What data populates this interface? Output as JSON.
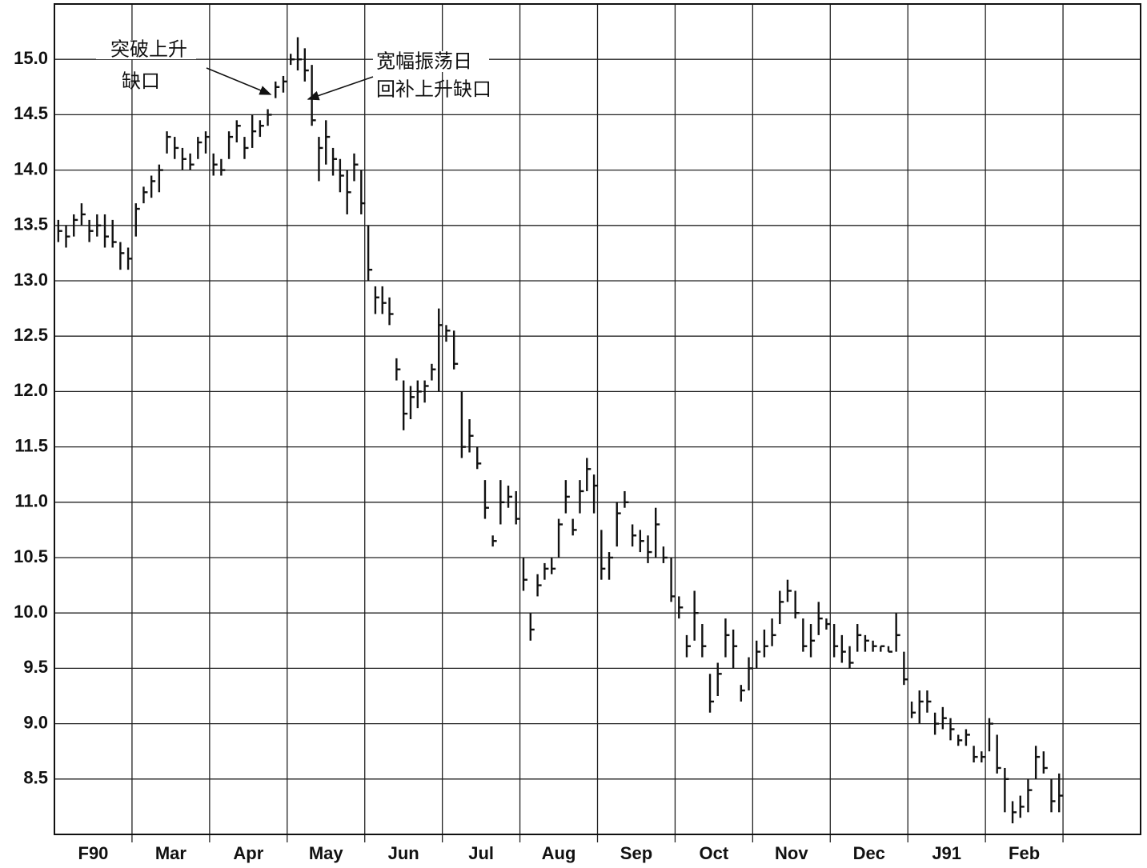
{
  "chart_data": {
    "type": "hlc",
    "annotations": [
      {
        "lines": [
          "突破上升",
          "缺口"
        ]
      },
      {
        "lines": [
          "宽幅振荡日",
          "回补上升缺口"
        ]
      }
    ],
    "categories": [
      "F90",
      "Mar",
      "Apr",
      "May",
      "Jun",
      "Jul",
      "Aug",
      "Sep",
      "Oct",
      "Nov",
      "Dec",
      "J91",
      "Feb",
      null
    ],
    "color": "#111111",
    "grid": true,
    "ylim": [
      8.0,
      15.5
    ],
    "yticks": [
      8.5,
      {
        "value": 9,
        "label": "9.0"
      },
      9.5,
      {
        "value": 10,
        "label": "10.0"
      },
      10.5,
      {
        "value": 11,
        "label": "11.0"
      },
      11.5,
      {
        "value": 12,
        "label": "12.0"
      },
      12.5,
      {
        "value": 13,
        "label": "13.0"
      },
      13.5,
      {
        "value": 14,
        "label": "14.0"
      },
      14.5,
      {
        "value": 15,
        "label": "15.0"
      }
    ],
    "bars": [
      [
        [
          13.55,
          13.35,
          13.45
        ],
        [
          13.5,
          13.3,
          13.4
        ],
        [
          13.6,
          13.4,
          13.55
        ],
        [
          13.7,
          13.5,
          13.6
        ],
        [
          13.55,
          13.35,
          13.45
        ],
        [
          13.6,
          13.4,
          13.5
        ],
        [
          13.6,
          13.3,
          13.4
        ],
        [
          13.55,
          13.3,
          13.35
        ],
        [
          13.35,
          13.1,
          13.25
        ],
        [
          13.3,
          13.1,
          13.2
        ]
      ],
      [
        [
          13.7,
          13.4,
          13.65
        ],
        [
          13.85,
          13.7,
          13.8
        ],
        [
          13.95,
          13.75,
          13.9
        ],
        [
          14.05,
          13.8,
          14.0
        ],
        [
          14.35,
          14.15,
          14.3
        ],
        [
          14.3,
          14.1,
          14.2
        ],
        [
          14.2,
          14.0,
          14.1
        ],
        [
          14.15,
          14.0,
          14.05
        ],
        [
          14.3,
          14.1,
          14.25
        ],
        [
          14.35,
          14.15,
          14.3
        ]
      ],
      [
        [
          14.15,
          13.95,
          14.05
        ],
        [
          14.1,
          13.95,
          14.0
        ],
        [
          14.35,
          14.1,
          14.3
        ],
        [
          14.45,
          14.25,
          14.4
        ],
        [
          14.3,
          14.1,
          14.2
        ],
        [
          14.5,
          14.2,
          14.35
        ],
        [
          14.45,
          14.3,
          14.4
        ],
        [
          14.55,
          14.4,
          14.5
        ],
        [
          14.8,
          14.65,
          14.75
        ],
        [
          14.85,
          14.7,
          14.8
        ]
      ],
      [
        [
          15.05,
          14.95,
          15.0
        ],
        [
          15.2,
          14.9,
          15.0
        ],
        [
          15.1,
          14.8,
          14.9
        ],
        [
          14.95,
          14.4,
          14.45
        ],
        [
          14.3,
          13.9,
          14.2
        ],
        [
          14.45,
          14.05,
          14.3
        ],
        [
          14.2,
          13.95,
          14.1
        ],
        [
          14.1,
          13.8,
          13.95
        ],
        [
          14.0,
          13.6,
          13.8
        ],
        [
          14.15,
          13.9,
          14.05
        ],
        [
          14.0,
          13.6,
          13.7
        ]
      ],
      [
        [
          13.5,
          13.0,
          13.1
        ],
        [
          12.95,
          12.7,
          12.85
        ],
        [
          12.95,
          12.7,
          12.8
        ],
        [
          12.85,
          12.6,
          12.7
        ],
        [
          12.3,
          12.1,
          12.2
        ],
        [
          12.1,
          11.65,
          11.8
        ],
        [
          12.05,
          11.75,
          11.95
        ],
        [
          12.1,
          11.85,
          12.0
        ],
        [
          12.1,
          11.9,
          12.05
        ],
        [
          12.25,
          12.1,
          12.2
        ],
        [
          12.75,
          12.0,
          12.6
        ]
      ],
      [
        [
          12.6,
          12.45,
          12.55
        ],
        [
          12.55,
          12.2,
          12.25
        ],
        [
          12.0,
          11.4,
          11.5
        ],
        [
          11.75,
          11.45,
          11.6
        ],
        [
          11.5,
          11.3,
          11.35
        ],
        [
          11.2,
          10.85,
          10.95
        ],
        [
          10.7,
          10.6,
          10.65
        ],
        [
          11.2,
          10.8,
          11.0
        ],
        [
          11.15,
          10.95,
          11.05
        ],
        [
          11.1,
          10.8,
          10.85
        ]
      ],
      [
        [
          10.5,
          10.2,
          10.3
        ],
        [
          10.0,
          9.75,
          9.85
        ],
        [
          10.35,
          10.15,
          10.25
        ],
        [
          10.45,
          10.3,
          10.4
        ],
        [
          10.5,
          10.35,
          10.4
        ],
        [
          10.85,
          10.5,
          10.8
        ],
        [
          11.2,
          10.9,
          11.05
        ],
        [
          10.85,
          10.7,
          10.75
        ],
        [
          11.2,
          10.9,
          11.1
        ],
        [
          11.4,
          11.1,
          11.3
        ],
        [
          11.25,
          10.9,
          11.15
        ]
      ],
      [
        [
          10.75,
          10.3,
          10.4
        ],
        [
          10.55,
          10.3,
          10.5
        ],
        [
          11.0,
          10.6,
          10.9
        ],
        [
          11.1,
          10.95,
          11.0
        ],
        [
          10.8,
          10.6,
          10.7
        ],
        [
          10.75,
          10.55,
          10.65
        ],
        [
          10.7,
          10.45,
          10.55
        ],
        [
          10.95,
          10.5,
          10.8
        ],
        [
          10.6,
          10.45,
          10.5
        ],
        [
          10.5,
          10.1,
          10.15
        ]
      ],
      [
        [
          10.15,
          9.95,
          10.05
        ],
        [
          9.8,
          9.6,
          9.7
        ],
        [
          10.2,
          9.75,
          10.0
        ],
        [
          9.9,
          9.6,
          9.7
        ],
        [
          9.45,
          9.1,
          9.2
        ],
        [
          9.55,
          9.25,
          9.45
        ],
        [
          9.95,
          9.6,
          9.8
        ],
        [
          9.85,
          9.5,
          9.7
        ],
        [
          9.35,
          9.2,
          9.3
        ],
        [
          9.6,
          9.3,
          9.5
        ]
      ],
      [
        [
          9.75,
          9.5,
          9.65
        ],
        [
          9.85,
          9.6,
          9.7
        ],
        [
          9.95,
          9.7,
          9.8
        ],
        [
          10.2,
          9.9,
          10.1
        ],
        [
          10.3,
          10.1,
          10.2
        ],
        [
          10.2,
          9.95,
          10.0
        ],
        [
          9.95,
          9.65,
          9.7
        ],
        [
          9.9,
          9.6,
          9.75
        ],
        [
          10.1,
          9.8,
          9.95
        ],
        [
          9.95,
          9.85,
          9.9
        ]
      ],
      [
        [
          9.9,
          9.6,
          9.7
        ],
        [
          9.8,
          9.55,
          9.65
        ],
        [
          9.7,
          9.5,
          9.55
        ],
        [
          9.9,
          9.65,
          9.8
        ],
        [
          9.8,
          9.65,
          9.75
        ],
        [
          9.75,
          9.65,
          9.7
        ],
        [
          9.7,
          9.65,
          9.7
        ],
        [
          9.7,
          9.65,
          9.65
        ],
        [
          10.0,
          9.65,
          9.8
        ],
        [
          9.65,
          9.35,
          9.4
        ]
      ],
      [
        [
          9.2,
          9.05,
          9.1
        ],
        [
          9.3,
          9.0,
          9.2
        ],
        [
          9.3,
          9.1,
          9.2
        ],
        [
          9.1,
          8.9,
          9.0
        ],
        [
          9.15,
          8.95,
          9.05
        ],
        [
          9.05,
          8.85,
          8.95
        ],
        [
          8.9,
          8.8,
          8.85
        ],
        [
          8.95,
          8.8,
          8.9
        ],
        [
          8.8,
          8.65,
          8.7
        ],
        [
          8.75,
          8.65,
          8.7
        ]
      ],
      [
        [
          9.05,
          8.75,
          9.0
        ],
        [
          8.9,
          8.55,
          8.6
        ],
        [
          8.6,
          8.2,
          8.5
        ],
        [
          8.3,
          8.1,
          8.2
        ],
        [
          8.35,
          8.15,
          8.25
        ],
        [
          8.5,
          8.2,
          8.4
        ],
        [
          8.8,
          8.5,
          8.7
        ],
        [
          8.75,
          8.55,
          8.6
        ],
        [
          8.5,
          8.2,
          8.3
        ],
        [
          8.55,
          8.2,
          8.35
        ]
      ],
      []
    ]
  }
}
